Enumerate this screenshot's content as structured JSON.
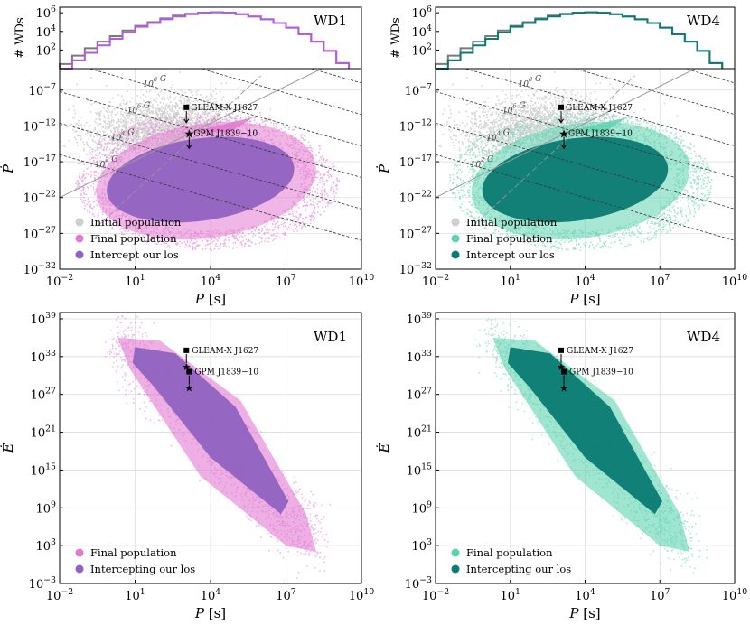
{
  "colors": {
    "initial": "#cfcfcf",
    "hist_initial": "#7a7a7a",
    "WD1": {
      "final": "#e27ad2",
      "los": "#8f63c0",
      "hist_final": "#b65be0"
    },
    "WD4": {
      "final": "#5fd3b0",
      "los": "#0a7a72",
      "hist_final": "#0b7a76"
    },
    "bfield_line": "#333333",
    "grid": "#dddddd"
  },
  "chart_data": [
    {
      "type": "histogram",
      "panel": "WD1-hist",
      "ylabel": "# WDs",
      "ytick_labels": [
        "10^2",
        "10^4",
        "10^6"
      ],
      "ytick_values": [
        2,
        4,
        6
      ],
      "log_y": true,
      "x_log_edges": [
        -2,
        -1.5,
        -1,
        -0.5,
        0,
        0.5,
        1,
        1.5,
        2,
        2.5,
        3,
        3.5,
        4,
        4.5,
        5,
        5.5,
        6,
        6.5,
        7,
        7.5,
        8,
        8.5,
        9,
        9.5
      ],
      "series": [
        {
          "name": "Initial population",
          "log_counts": [
            0.5,
            1.4,
            2.2,
            2.9,
            3.5,
            4.1,
            4.6,
            5.0,
            5.4,
            5.7,
            5.9,
            6.0,
            6.05,
            6.0,
            5.85,
            5.6,
            5.3,
            4.9,
            4.4,
            3.7,
            2.9,
            1.9,
            0.6
          ]
        },
        {
          "name": "Final population",
          "log_counts": [
            0.0,
            0.9,
            1.7,
            2.5,
            3.2,
            3.9,
            4.5,
            4.9,
            5.3,
            5.6,
            5.85,
            6.0,
            6.05,
            6.0,
            5.85,
            5.6,
            5.3,
            4.9,
            4.4,
            3.7,
            2.9,
            1.9,
            0.6
          ]
        }
      ],
      "tag": "WD1"
    },
    {
      "type": "histogram",
      "panel": "WD4-hist",
      "ylabel": "# WDs",
      "ytick_labels": [
        "10^2",
        "10^4",
        "10^6"
      ],
      "ytick_values": [
        2,
        4,
        6
      ],
      "log_y": true,
      "x_log_edges": [
        -2,
        -1.5,
        -1,
        -0.5,
        0,
        0.5,
        1,
        1.5,
        2,
        2.5,
        3,
        3.5,
        4,
        4.5,
        5,
        5.5,
        6,
        6.5,
        7,
        7.5,
        8,
        8.5,
        9,
        9.5
      ],
      "series": [
        {
          "name": "Initial population",
          "log_counts": [
            0.5,
            1.4,
            2.2,
            2.9,
            3.5,
            4.1,
            4.6,
            5.0,
            5.4,
            5.7,
            5.9,
            6.0,
            6.05,
            6.0,
            5.85,
            5.6,
            5.3,
            4.9,
            4.4,
            3.7,
            2.9,
            1.9,
            0.6
          ]
        },
        {
          "name": "Final population",
          "log_counts": [
            0.0,
            0.9,
            1.7,
            2.5,
            3.2,
            3.9,
            4.5,
            4.9,
            5.3,
            5.6,
            5.85,
            6.0,
            6.05,
            6.0,
            5.85,
            5.6,
            5.3,
            4.9,
            4.4,
            3.7,
            2.9,
            1.9,
            0.6
          ]
        }
      ],
      "tag": "WD4"
    },
    {
      "type": "scatter",
      "panel": "WD1-ppdot",
      "model": "WD1",
      "xlabel": "P [s]",
      "ylabel": "Pdot",
      "xlim_log": [
        -2,
        10
      ],
      "ylim_log": [
        -32,
        -4
      ],
      "xtick_values": [
        -2,
        1,
        4,
        7,
        10
      ],
      "xtick_labels": [
        "10^-2",
        "10^1",
        "10^4",
        "10^7",
        "10^10"
      ],
      "ytick_values": [
        -32,
        -27,
        -22,
        -17,
        -12,
        -7
      ],
      "ytick_labels": [
        "10^-32",
        "10^-27",
        "10^-22",
        "10^-17",
        "10^-12",
        "10^-7"
      ],
      "legend": [
        "Initial population",
        "Final population",
        "Intercept our los"
      ],
      "bfield_lines": [
        {
          "label": "10^12 G",
          "log_B": 12
        },
        {
          "label": "10^10 G",
          "log_B": 10
        },
        {
          "label": "10^8 G",
          "log_B": 8
        },
        {
          "label": "10^6 G",
          "log_B": 6
        },
        {
          "label": "10^4 G",
          "log_B": 4
        },
        {
          "label": "10^2 G",
          "log_B": 2
        }
      ],
      "sources": [
        {
          "name": "GLEAM-X J1627",
          "log_P": 3.04,
          "log_Pdot_upper": -9.4
        },
        {
          "name": "GPM J1839−10",
          "log_P": 3.15,
          "log_Pdot_upper": -13.0
        }
      ]
    },
    {
      "type": "scatter",
      "panel": "WD4-ppdot",
      "model": "WD4",
      "xlabel": "P [s]",
      "ylabel": "Pdot",
      "xlim_log": [
        -2,
        10
      ],
      "ylim_log": [
        -32,
        -4
      ],
      "xtick_values": [
        -2,
        1,
        4,
        7,
        10
      ],
      "xtick_labels": [
        "10^-2",
        "10^1",
        "10^4",
        "10^7",
        "10^10"
      ],
      "ytick_values": [
        -32,
        -27,
        -22,
        -17,
        -12,
        -7
      ],
      "ytick_labels": [
        "10^-32",
        "10^-27",
        "10^-22",
        "10^-17",
        "10^-12",
        "10^-7"
      ],
      "legend": [
        "Initial population",
        "Final population",
        "Intercept our los"
      ],
      "bfield_lines": [
        {
          "label": "10^12 G",
          "log_B": 12
        },
        {
          "label": "10^10 G",
          "log_B": 10
        },
        {
          "label": "10^8 G",
          "log_B": 8
        },
        {
          "label": "10^6 G",
          "log_B": 6
        },
        {
          "label": "10^4 G",
          "log_B": 4
        },
        {
          "label": "10^2 G",
          "log_B": 2
        }
      ],
      "sources": [
        {
          "name": "GLEAM-X J1627",
          "log_P": 3.04,
          "log_Pdot_upper": -9.4
        },
        {
          "name": "GPM J1839−10",
          "log_P": 3.15,
          "log_Pdot_upper": -13.0
        }
      ]
    },
    {
      "type": "scatter",
      "panel": "WD1-edot",
      "model": "WD1",
      "xlabel": "P [s]",
      "ylabel": "Edot",
      "xlim_log": [
        -2,
        10
      ],
      "ylim_log": [
        -3,
        40
      ],
      "xtick_values": [
        -2,
        1,
        4,
        7,
        10
      ],
      "xtick_labels": [
        "10^-2",
        "10^1",
        "10^4",
        "10^7",
        "10^10"
      ],
      "ytick_values": [
        -3,
        3,
        9,
        15,
        21,
        27,
        33,
        39
      ],
      "ytick_labels": [
        "10^-3",
        "10^3",
        "10^9",
        "10^15",
        "10^21",
        "10^27",
        "10^33",
        "10^39"
      ],
      "legend": [
        "Final population",
        "Intercepting our los"
      ],
      "sources": [
        {
          "name": "GLEAM-X J1627",
          "log_P": 3.04,
          "log_Edot_upper": 34.0
        },
        {
          "name": "GPM J1839−10",
          "log_P": 3.15,
          "log_Edot_upper": 30.6
        }
      ],
      "tag": "WD1"
    },
    {
      "type": "scatter",
      "panel": "WD4-edot",
      "model": "WD4",
      "xlabel": "P [s]",
      "ylabel": "Edot",
      "xlim_log": [
        -2,
        10
      ],
      "ylim_log": [
        -3,
        40
      ],
      "xtick_values": [
        -2,
        1,
        4,
        7,
        10
      ],
      "xtick_labels": [
        "10^-2",
        "10^1",
        "10^4",
        "10^7",
        "10^10"
      ],
      "ytick_values": [
        -3,
        3,
        9,
        15,
        21,
        27,
        33,
        39
      ],
      "ytick_labels": [
        "10^-3",
        "10^3",
        "10^9",
        "10^15",
        "10^21",
        "10^27",
        "10^33",
        "10^39"
      ],
      "legend": [
        "Final population",
        "Intercepting our los"
      ],
      "sources": [
        {
          "name": "GLEAM-X J1627",
          "log_P": 3.04,
          "log_Edot_upper": 34.0
        },
        {
          "name": "GPM J1839−10",
          "log_P": 3.15,
          "log_Edot_upper": 30.6
        }
      ],
      "tag": "WD4"
    }
  ]
}
